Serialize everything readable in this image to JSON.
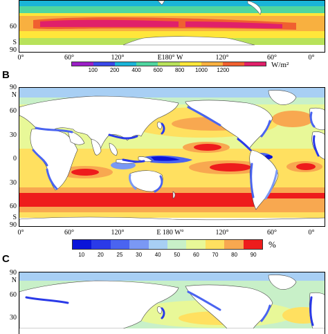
{
  "panels": {
    "a": {
      "lat_labels": [
        "60",
        "S",
        "90"
      ],
      "lon_labels": [
        "0°",
        "60°",
        "120°",
        "E180° W",
        "120°",
        "60°",
        "0°"
      ],
      "colorbar": {
        "colors": [
          "#9b1fc6",
          "#3a48e8",
          "#1ab4d8",
          "#4fd6a0",
          "#b8e25a",
          "#ffe63a",
          "#f8b040",
          "#f06030",
          "#e0206a"
        ],
        "ticks": [
          "100",
          "200",
          "400",
          "600",
          "800",
          "1000",
          "1200"
        ],
        "unit": "W/m²"
      }
    },
    "b": {
      "letter": "B",
      "lat_labels": [
        "90",
        "N",
        "60",
        "30",
        "0",
        "30",
        "60",
        "S",
        "90"
      ],
      "lon_labels": [
        "0°",
        "60°",
        "120°",
        "E 180 W°",
        "120°",
        "60°",
        "0°"
      ],
      "colorbar": {
        "colors": [
          "#0a14d8",
          "#2a3ae8",
          "#4a64f0",
          "#7a98f4",
          "#a8cff4",
          "#c8f0c8",
          "#e8f898",
          "#ffe060",
          "#f8a850",
          "#ee1c1c"
        ],
        "ticks": [
          "10",
          "20",
          "25",
          "30",
          "40",
          "50",
          "60",
          "70",
          "80",
          "90"
        ],
        "unit": "%"
      }
    },
    "c": {
      "letter": "C",
      "lat_labels": [
        "90",
        "N",
        "60",
        "30"
      ]
    }
  }
}
